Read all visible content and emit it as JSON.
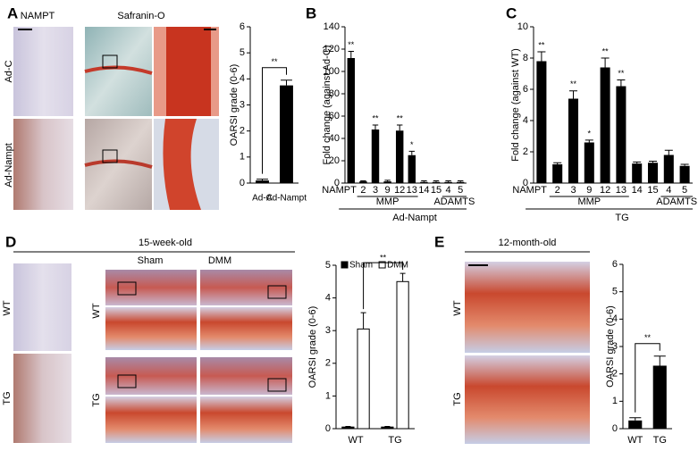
{
  "figure": {
    "panel_letters": [
      "A",
      "B",
      "C",
      "D",
      "E"
    ],
    "image_labels": {
      "a_stain": "NAMPT",
      "a_safranin": "Safranin-O",
      "a_row1": "Ad-C",
      "a_row2": "Ad-Nampt",
      "d_title": "15-week-old",
      "d_sham": "Sham",
      "d_dmm": "DMM",
      "d_row1": "WT",
      "d_row2": "TG",
      "d_row1b": "WT",
      "d_row2b": "TG",
      "e_title": "12-month-old",
      "e_row1": "WT",
      "e_row2": "TG"
    }
  },
  "chart_data": [
    {
      "type": "bar",
      "ylabel": "OARSI grade (0-6)",
      "categories": [
        "Ad-C",
        "Ad-Nampt"
      ],
      "values": [
        0.1,
        3.75
      ],
      "errors": [
        0.05,
        0.2
      ],
      "color": "#000000",
      "ylim": [
        0,
        6
      ],
      "yticks": [
        0,
        1,
        2,
        3,
        4,
        5,
        6
      ],
      "comparison_label": "**"
    },
    {
      "type": "bar",
      "ylabel": "Fold change (against Ad-C)",
      "categories": [
        "NAMPT",
        "2",
        "3",
        "9",
        "12",
        "13",
        "14",
        "15",
        "4",
        "5"
      ],
      "values": [
        112,
        1.5,
        48,
        1.5,
        47,
        25,
        1,
        1,
        1,
        1
      ],
      "errors": [
        6,
        0.5,
        4,
        1,
        5,
        3.5,
        1,
        1,
        1,
        1
      ],
      "significance": [
        "**",
        null,
        "**",
        null,
        "**",
        "*",
        null,
        null,
        null,
        null
      ],
      "color": "#000000",
      "ylim": [
        0,
        140
      ],
      "yticks": [
        0,
        20,
        40,
        60,
        80,
        100,
        120,
        140
      ],
      "group_labels": [
        "MMP",
        "ADAMTS"
      ],
      "group_title": "Ad-Nampt"
    },
    {
      "type": "bar",
      "ylabel": "Fold change (against WT)",
      "categories": [
        "NAMPT",
        "2",
        "3",
        "9",
        "12",
        "13",
        "14",
        "15",
        "4",
        "5"
      ],
      "values": [
        7.8,
        1.2,
        5.4,
        2.6,
        7.4,
        6.2,
        1.25,
        1.3,
        1.8,
        1.1
      ],
      "errors": [
        0.6,
        0.1,
        0.5,
        0.15,
        0.6,
        0.4,
        0.1,
        0.1,
        0.3,
        0.1
      ],
      "significance": [
        "**",
        null,
        "**",
        "*",
        "**",
        "**",
        null,
        null,
        null,
        null
      ],
      "color": "#000000",
      "ylim": [
        0,
        10
      ],
      "yticks": [
        0,
        2,
        4,
        6,
        8,
        10
      ],
      "group_labels": [
        "MMP",
        "ADAMTS"
      ],
      "group_title": "TG"
    },
    {
      "type": "bar",
      "ylabel": "OARSI grade (0-6)",
      "categories": [
        "WT",
        "TG"
      ],
      "series": [
        {
          "name": "Sham",
          "color": "#000000",
          "values": [
            0.05,
            0.05
          ],
          "errors": [
            0.02,
            0.02
          ]
        },
        {
          "name": "DMM",
          "color": "#ffffff",
          "values": [
            3.05,
            4.5
          ],
          "errors": [
            0.5,
            0.25
          ]
        }
      ],
      "ylim": [
        0,
        5
      ],
      "yticks": [
        0,
        1,
        2,
        3,
        4,
        5
      ],
      "legend": "top",
      "comparison_label": "**"
    },
    {
      "type": "bar",
      "ylabel": "OARSI grade (0-6)",
      "categories": [
        "WT",
        "TG"
      ],
      "values": [
        0.3,
        2.3
      ],
      "errors": [
        0.1,
        0.35
      ],
      "color": "#000000",
      "ylim": [
        0,
        6
      ],
      "yticks": [
        0,
        1,
        2,
        3,
        4,
        5,
        6
      ],
      "comparison_label": "**"
    }
  ]
}
